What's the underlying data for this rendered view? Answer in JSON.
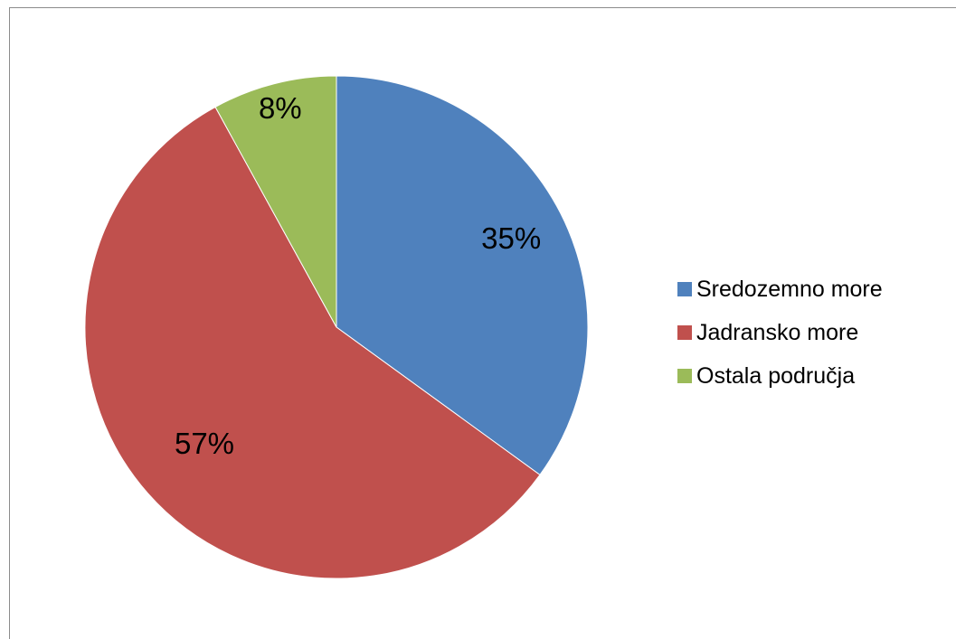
{
  "chart_data": {
    "type": "pie",
    "categories": [
      "Sredozemno more",
      "Jadransko more",
      "Ostala područja"
    ],
    "values": [
      35,
      57,
      8
    ],
    "data_labels": [
      "35%",
      "57%",
      "8%"
    ],
    "colors": [
      "#4f81bd",
      "#c0504d",
      "#9bbb59"
    ],
    "title": "",
    "legend_position": "right",
    "start_angle": "12 o'clock",
    "direction": "clockwise"
  }
}
